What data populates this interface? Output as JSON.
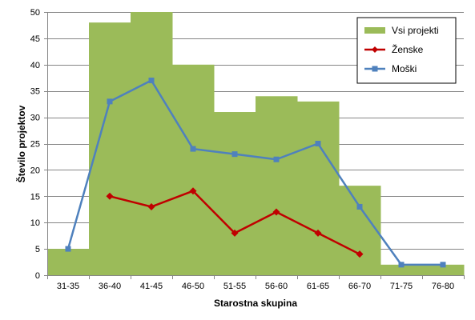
{
  "chart_data": {
    "type": "bar",
    "title": "",
    "xlabel": "Starostna skupina",
    "ylabel": "Število projektov",
    "ylim": [
      0,
      50
    ],
    "yticks": [
      0,
      5,
      10,
      15,
      20,
      25,
      30,
      35,
      40,
      45,
      50
    ],
    "grid": "horizontal",
    "legend_position": "top-right",
    "categories": [
      "31-35",
      "36-40",
      "41-45",
      "46-50",
      "51-55",
      "56-60",
      "61-65",
      "66-70",
      "71-75",
      "76-80"
    ],
    "series": [
      {
        "name": "Vsi projekti",
        "kind": "bar",
        "color": "#9bbb59",
        "values": [
          5,
          48,
          50,
          40,
          31,
          34,
          33,
          17,
          2,
          2
        ]
      },
      {
        "name": "Ženske",
        "kind": "line",
        "marker": "diamond",
        "color": "#c00000",
        "values": [
          null,
          15,
          13,
          16,
          8,
          12,
          8,
          4,
          null,
          null
        ]
      },
      {
        "name": "Moški",
        "kind": "line",
        "marker": "square",
        "color": "#4f81bd",
        "values": [
          5,
          33,
          37,
          24,
          23,
          22,
          25,
          13,
          2,
          2
        ]
      }
    ]
  }
}
